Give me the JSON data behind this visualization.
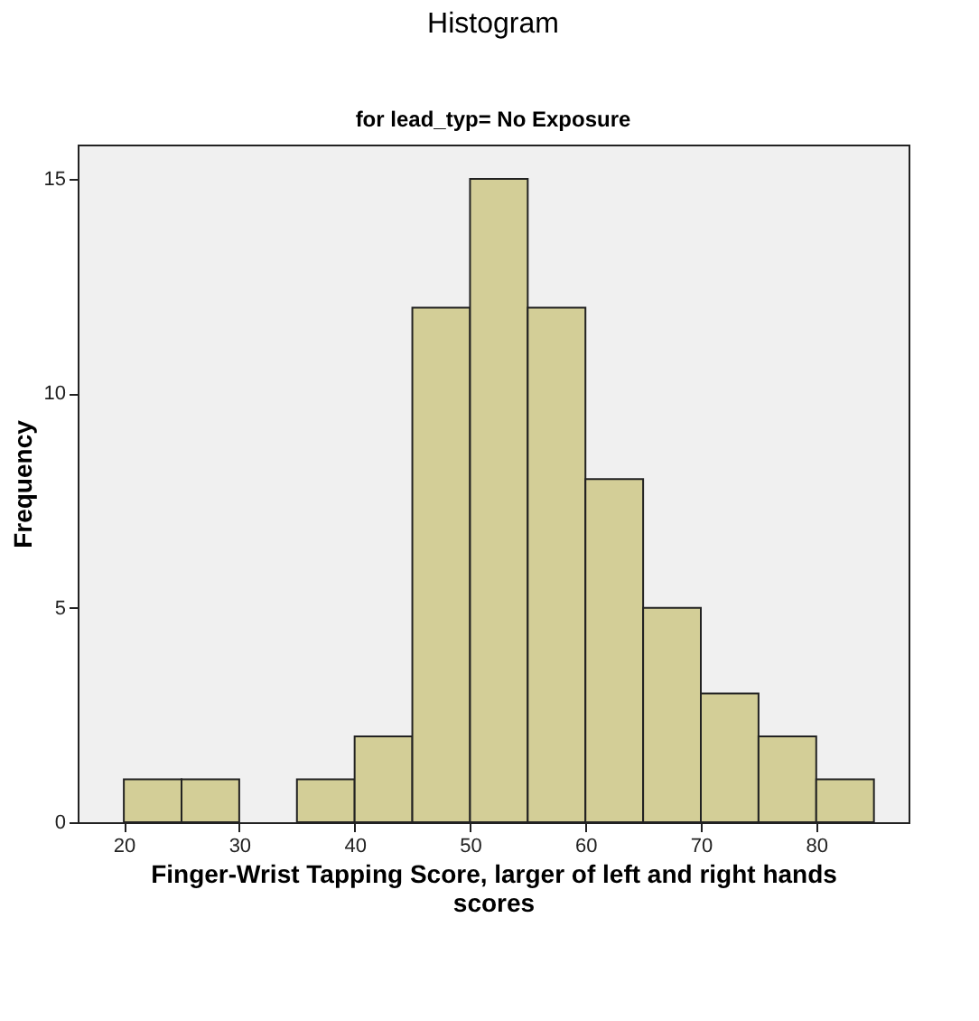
{
  "chart_data": {
    "type": "histogram",
    "title": "Histogram",
    "subtitle": "for lead_typ= No Exposure",
    "xlabel": "Finger-Wrist Tapping Score, larger of left and right hands scores",
    "ylabel": "Frequency",
    "bins": [
      20,
      25,
      30,
      35,
      40,
      45,
      50,
      55,
      60,
      65,
      70,
      75,
      80,
      85
    ],
    "values": [
      1,
      1,
      0,
      1,
      2,
      12,
      15,
      12,
      8,
      5,
      3,
      2,
      1
    ],
    "color": "#d3ce97",
    "xlim": [
      16,
      88
    ],
    "ylim": [
      0,
      15.8
    ],
    "xticks": [
      20,
      30,
      40,
      50,
      60,
      70,
      80
    ],
    "yticks": [
      0,
      5,
      10,
      15
    ],
    "grid": false
  }
}
